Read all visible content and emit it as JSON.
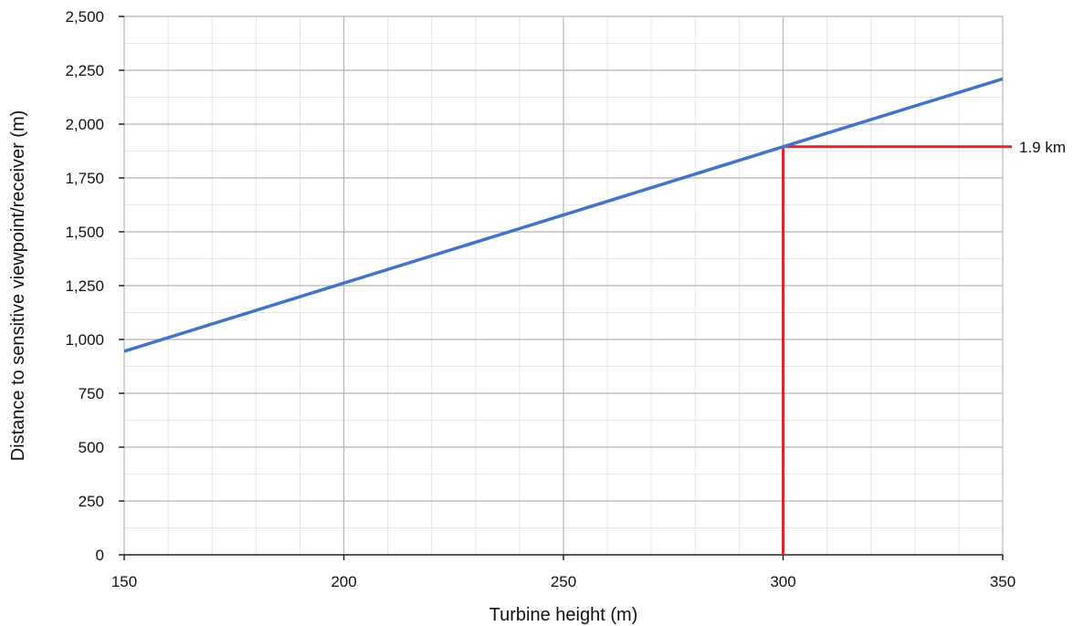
{
  "chart_data": {
    "type": "line",
    "title": "",
    "xlabel": "Turbine height (m)",
    "ylabel": "Distance to sensitive viewpoint/receiver (m)",
    "xlim": [
      150,
      350
    ],
    "ylim": [
      0,
      2500
    ],
    "x_ticks": [
      150,
      200,
      250,
      300,
      350
    ],
    "x_tick_labels": [
      "150",
      "200",
      "250",
      "300",
      "350"
    ],
    "y_ticks": [
      0,
      250,
      500,
      750,
      1000,
      1250,
      1500,
      1750,
      2000,
      2250,
      2500
    ],
    "y_tick_labels": [
      "0",
      "250",
      "500",
      "750",
      "1,000",
      "1,250",
      "1,500",
      "1,750",
      "2,000",
      "2,250",
      "2,500"
    ],
    "x_minor_step": 10,
    "y_minor_step": 125,
    "grid": true,
    "series": [
      {
        "x": [
          150,
          200,
          250,
          300,
          350
        ],
        "values": [
          945,
          1262,
          1578,
          1895,
          2210
        ],
        "color": "#4472C4"
      }
    ],
    "annotations": [
      {
        "label": "1.9 km",
        "x": 300,
        "y": 1895,
        "color": "#E0262B"
      }
    ]
  }
}
